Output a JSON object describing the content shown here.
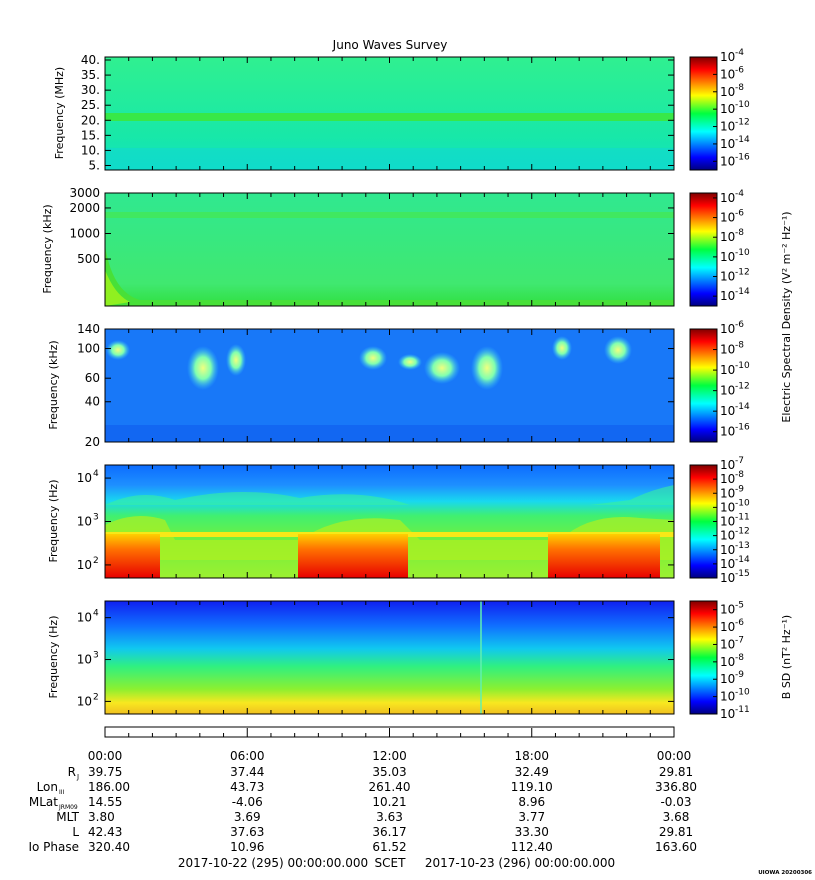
{
  "title": "Juno Waves Survey",
  "cbar_title_e": "Electric Spectral Density (V² m⁻² Hz⁻¹)",
  "cbar_title_b": "B SD (nT² Hz⁻¹)",
  "chart_data": [
    {
      "type": "heatmap",
      "ylabel": "Frequency (MHz)",
      "yscale": "linear",
      "ylim": [
        3.5,
        41
      ],
      "yticks": [
        {
          "v": 40,
          "l": "40."
        },
        {
          "v": 35,
          "l": "35."
        },
        {
          "v": 30,
          "l": "30."
        },
        {
          "v": 25,
          "l": "25."
        },
        {
          "v": 20,
          "l": "20."
        },
        {
          "v": 15,
          "l": "15."
        },
        {
          "v": 10,
          "l": "10."
        },
        {
          "v": 5,
          "l": "5."
        }
      ],
      "colorbar": {
        "log_range": [
          -17,
          -4
        ],
        "ticks": [
          {
            "e": -4,
            "l": "10"
          },
          {
            "e": -6,
            "l": "10"
          },
          {
            "e": -8,
            "l": "10"
          },
          {
            "e": -10,
            "l": "10"
          },
          {
            "e": -12,
            "l": "10"
          },
          {
            "e": -14,
            "l": "10"
          },
          {
            "e": -16,
            "l": "10"
          }
        ]
      }
    },
    {
      "type": "heatmap",
      "ylabel": "Frequency (kHz)",
      "yscale": "log",
      "ylim": [
        140,
        3000
      ],
      "yticks": [
        {
          "v": 3000,
          "l": "3000"
        },
        {
          "v": 2000,
          "l": "2000"
        },
        {
          "v": 1000,
          "l": "1000"
        },
        {
          "v": 500,
          "l": "500"
        }
      ],
      "colorbar": {
        "log_range": [
          -15,
          -3.5
        ],
        "ticks": [
          {
            "e": -4,
            "l": "10"
          },
          {
            "e": -6,
            "l": "10"
          },
          {
            "e": -8,
            "l": "10"
          },
          {
            "e": -10,
            "l": "10"
          },
          {
            "e": -12,
            "l": "10"
          },
          {
            "e": -14,
            "l": "10"
          }
        ]
      }
    },
    {
      "type": "heatmap",
      "ylabel": "Frequency (kHz)",
      "yscale": "log",
      "ylim": [
        20,
        140
      ],
      "yticks": [
        {
          "v": 140,
          "l": "140"
        },
        {
          "v": 100,
          "l": "100"
        },
        {
          "v": 60,
          "l": "60"
        },
        {
          "v": 40,
          "l": "40"
        },
        {
          "v": 20,
          "l": "20"
        }
      ],
      "colorbar": {
        "log_range": [
          -17,
          -6
        ],
        "ticks": [
          {
            "e": -6,
            "l": "10"
          },
          {
            "e": -8,
            "l": "10"
          },
          {
            "e": -10,
            "l": "10"
          },
          {
            "e": -12,
            "l": "10"
          },
          {
            "e": -14,
            "l": "10"
          },
          {
            "e": -16,
            "l": "10"
          }
        ]
      }
    },
    {
      "type": "heatmap",
      "ylabel": "Frequency (Hz)",
      "yscale": "log",
      "ylim": [
        50,
        20000
      ],
      "yticks": [
        {
          "v": 10000,
          "l": "10",
          "e": "4"
        },
        {
          "v": 1000,
          "l": "10",
          "e": "3"
        },
        {
          "v": 100,
          "l": "10",
          "e": "2"
        }
      ],
      "colorbar": {
        "log_range": [
          -15,
          -7
        ],
        "ticks": [
          {
            "e": -7,
            "l": "10"
          },
          {
            "e": -8,
            "l": "10"
          },
          {
            "e": -9,
            "l": "10"
          },
          {
            "e": -10,
            "l": "10"
          },
          {
            "e": -11,
            "l": "10"
          },
          {
            "e": -12,
            "l": "10"
          },
          {
            "e": -13,
            "l": "10"
          },
          {
            "e": -14,
            "l": "10"
          },
          {
            "e": -15,
            "l": "10"
          }
        ]
      }
    },
    {
      "type": "heatmap",
      "ylabel": "Frequency (Hz)",
      "yscale": "log",
      "ylim": [
        50,
        25000
      ],
      "yticks": [
        {
          "v": 10000,
          "l": "10",
          "e": "4"
        },
        {
          "v": 1000,
          "l": "10",
          "e": "3"
        },
        {
          "v": 100,
          "l": "10",
          "e": "2"
        }
      ],
      "colorbar": {
        "log_range": [
          -11,
          -4.5
        ],
        "ticks": [
          {
            "e": -5,
            "l": "10"
          },
          {
            "e": -6,
            "l": "10"
          },
          {
            "e": -7,
            "l": "10"
          },
          {
            "e": -8,
            "l": "10"
          },
          {
            "e": -9,
            "l": "10"
          },
          {
            "e": -10,
            "l": "10"
          },
          {
            "e": -11,
            "l": "10"
          }
        ]
      }
    }
  ],
  "ephemeris": {
    "x_hours": [
      0,
      6,
      12,
      18,
      24
    ],
    "times": [
      "00:00",
      "06:00",
      "12:00",
      "18:00",
      "00:00"
    ],
    "rows": [
      {
        "label": "R",
        "sub": "J",
        "values": [
          "39.75",
          "37.44",
          "35.03",
          "32.49",
          "29.81"
        ]
      },
      {
        "label": "Lon",
        "sub": "III",
        "values": [
          "186.00",
          "43.73",
          "261.40",
          "119.10",
          "336.80"
        ]
      },
      {
        "label": "MLat",
        "sub": "JRM09",
        "values": [
          "14.55",
          "-4.06",
          "10.21",
          "8.96",
          "-0.03"
        ]
      },
      {
        "label": "MLT",
        "sub": "",
        "values": [
          "3.80",
          "3.69",
          "3.63",
          "3.77",
          "3.68"
        ]
      },
      {
        "label": "L",
        "sub": "",
        "values": [
          "42.43",
          "37.63",
          "36.17",
          "33.30",
          "29.81"
        ]
      },
      {
        "label": "Io Phase",
        "sub": "",
        "values": [
          "320.40",
          "10.96",
          "61.52",
          "112.40",
          "163.60"
        ]
      }
    ]
  },
  "footer": {
    "start": "2017-10-22 (295) 00:00:00.000",
    "scet": "SCET",
    "end": "2017-10-23 (296) 00:00:00.000"
  },
  "stamp": "UIOWA 20200306",
  "colors": {
    "jet": [
      "#000080",
      "#0000ff",
      "#0080ff",
      "#00ffff",
      "#80ff80",
      "#ffff00",
      "#ff8000",
      "#ff0000",
      "#800000"
    ]
  }
}
